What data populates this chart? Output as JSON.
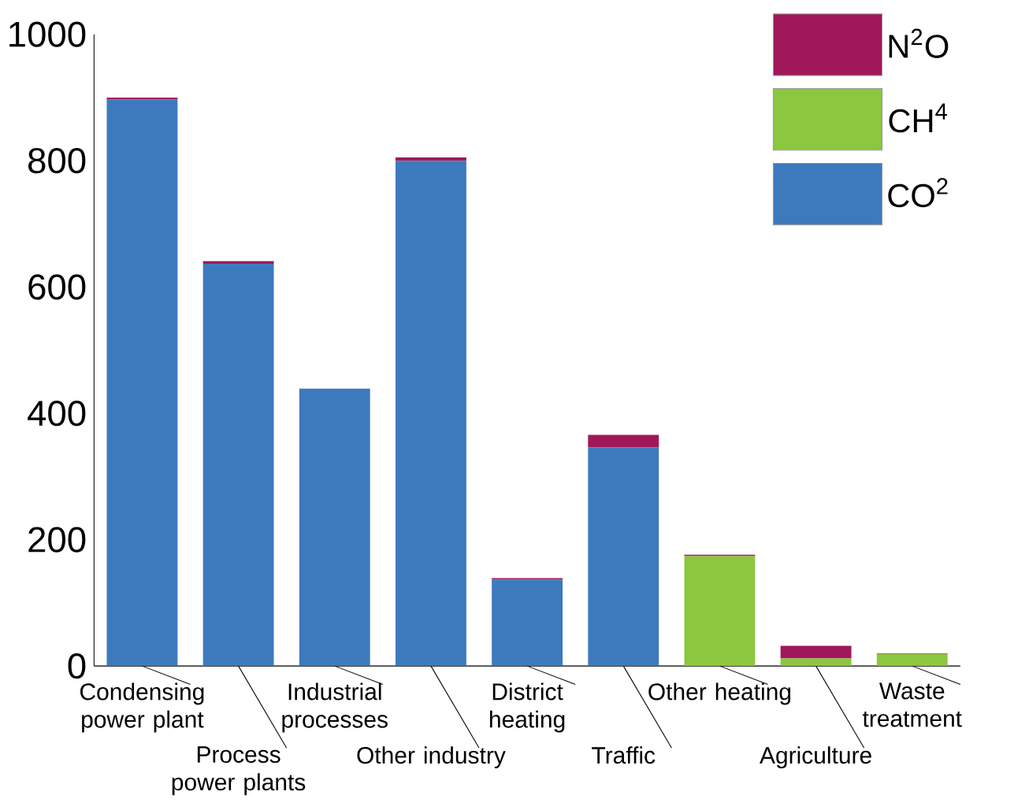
{
  "chart_data": {
    "type": "bar",
    "stacked": true,
    "categories": [
      "Condensing power plant",
      "Process power plants",
      "Industrial processes",
      "Other industry",
      "District heating",
      "Traffic",
      "Other heating",
      "Agriculture",
      "Waste treatment"
    ],
    "series": [
      {
        "name": "CO$^{2}$",
        "color": "#3d7abd",
        "values": [
          897,
          637,
          439,
          800,
          137,
          346,
          0,
          0,
          0
        ]
      },
      {
        "name": "CH$^{4}$",
        "color": "#8dc63f",
        "values": [
          0,
          0,
          0,
          0,
          0,
          0,
          174,
          12,
          19
        ]
      },
      {
        "name": "N$^{2}$O",
        "color": "#a0185a",
        "values": [
          3,
          4,
          0,
          5,
          2,
          20,
          2,
          20,
          1
        ]
      }
    ],
    "ylim": [
      0,
      1000
    ],
    "yticks": [
      0,
      200,
      400,
      600,
      800,
      1000
    ],
    "grid": false,
    "legend": "top right"
  }
}
